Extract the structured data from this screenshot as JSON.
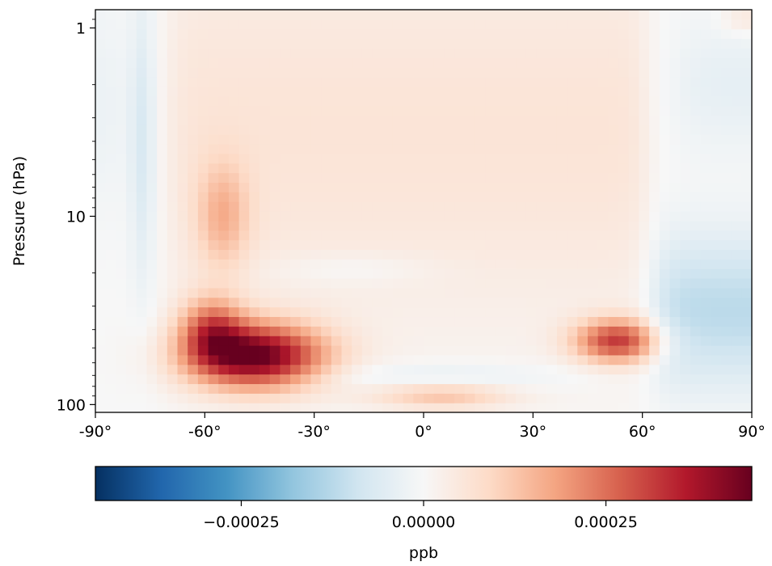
{
  "chart_data": {
    "type": "heatmap",
    "title": "",
    "xlabel": "",
    "ylabel": "Pressure (hPa)",
    "x_axis": {
      "range": [
        -90,
        90
      ],
      "ticks": [
        -90,
        -60,
        -30,
        0,
        30,
        60,
        90
      ],
      "tick_labels": [
        "-90°",
        "-60°",
        "-30°",
        "0°",
        "30°",
        "60°",
        "90°"
      ]
    },
    "y_axis": {
      "scale": "log",
      "inverted": true,
      "range": [
        110,
        0.8
      ],
      "ticks": [
        1,
        10,
        100
      ],
      "tick_labels": [
        "1",
        "10",
        "100"
      ]
    },
    "colormap": "RdBu_r",
    "colorbar": {
      "label": "ppb",
      "range": [
        -0.00045,
        0.00045
      ],
      "ticks": [
        -0.00025,
        0.0,
        0.00025
      ],
      "tick_labels": [
        "−0.00025",
        "0.00000",
        "0.00025"
      ]
    },
    "features": [
      {
        "description": "southern mid-latitude positive maximum",
        "lat_center": -46,
        "pressure_center": 55,
        "value": 0.00044
      },
      {
        "description": "northern mid-latitude positive maximum",
        "lat_center": 53,
        "pressure_center": 45,
        "value": 0.00038
      },
      {
        "description": "southern polar negative band",
        "lat_center": -77,
        "pressure_range": [
          1,
          10
        ],
        "value": -7e-05
      },
      {
        "description": "northern polar negative region",
        "lat_center": 78,
        "pressure_range": [
          15,
          60
        ],
        "value": -0.00012
      },
      {
        "description": "tropical lower positive band",
        "lat_center": 5,
        "pressure_center": 90,
        "value": 0.00012
      },
      {
        "description": "broad upper-level weak positive",
        "lat_range": [
          -70,
          60
        ],
        "pressure_range": [
          1,
          20
        ],
        "value": 6e-05
      }
    ]
  }
}
